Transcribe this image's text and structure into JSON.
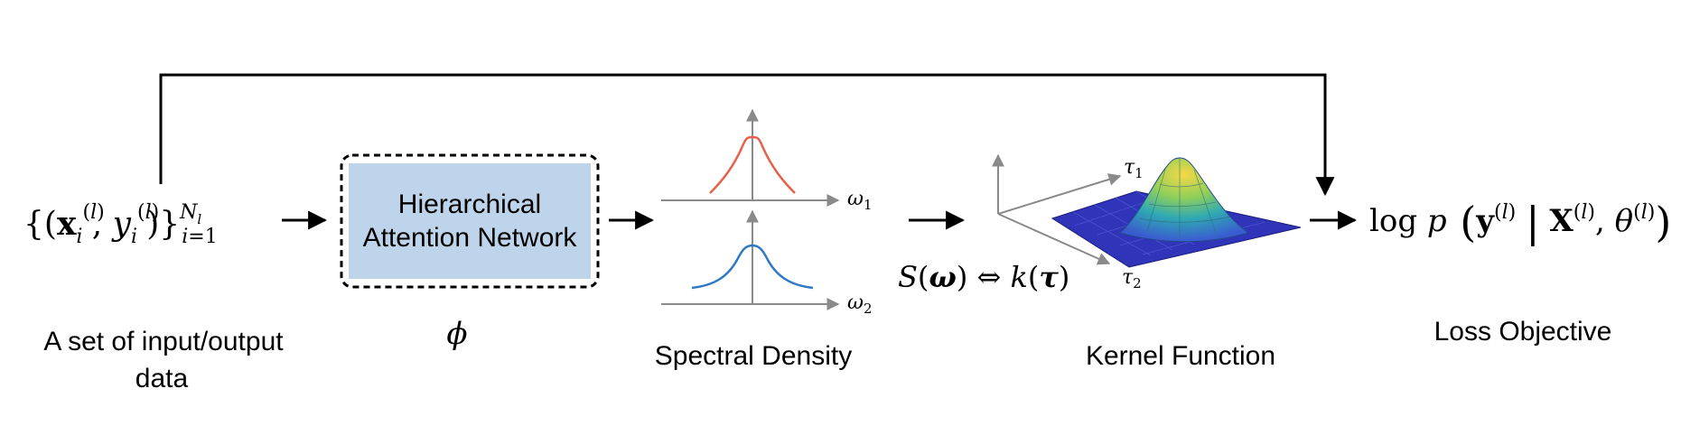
{
  "input": {
    "formula": "{(x_i^(l), y_i^(l))}_{i=1}^{N_l}",
    "caption_line1": "A set of input/output",
    "caption_line2": "data"
  },
  "network": {
    "label_line1": "Hierarchical",
    "label_line2": "Attention Network",
    "param_symbol": "ϕ",
    "fill_color": "#bdd4ea"
  },
  "spectral": {
    "axis1_label": "ω",
    "axis1_sub": "1",
    "axis2_label": "ω",
    "axis2_sub": "2",
    "caption": "Spectral Density",
    "peak1_color": "#e8604a",
    "peak2_color": "#2f78c4"
  },
  "bochner": {
    "lhs": "S(ω)",
    "arrow": "⇔",
    "rhs": "k(τ)"
  },
  "kernel": {
    "axis1_label": "τ",
    "axis1_sub": "1",
    "axis2_label": "τ",
    "axis2_sub": "2",
    "caption": "Kernel Function"
  },
  "loss": {
    "formula": "log p(y^(l) | X^(l), θ^(l))",
    "caption": "Loss Objective"
  }
}
